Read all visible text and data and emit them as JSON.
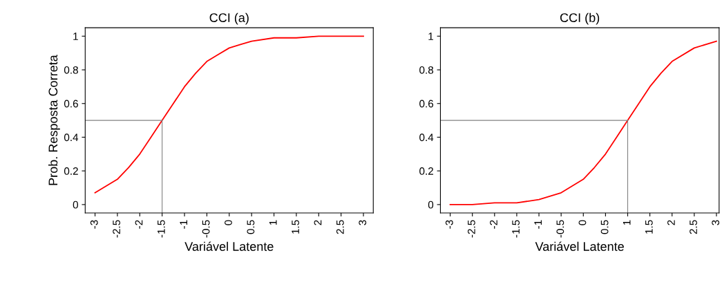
{
  "chart_data": [
    {
      "type": "line",
      "title": "CCI (a)",
      "xlabel": "Variável Latente",
      "ylabel": "Prob. Resposta Correta",
      "x": [
        -3,
        -2.75,
        -2.5,
        -2.25,
        -2,
        -1.75,
        -1.5,
        -1.25,
        -1,
        -0.75,
        -0.5,
        -0.25,
        0,
        0.25,
        0.5,
        1,
        1.5,
        2,
        2.5,
        3
      ],
      "series": [
        {
          "color": "#ff0000",
          "values": [
            0.07,
            0.11,
            0.15,
            0.22,
            0.3,
            0.4,
            0.5,
            0.6,
            0.7,
            0.78,
            0.85,
            0.89,
            0.93,
            0.95,
            0.97,
            0.99,
            0.99,
            1.0,
            1.0,
            1.0
          ]
        }
      ],
      "xlim": [
        -3.22,
        3.22
      ],
      "ylim": [
        -0.05,
        1.05
      ],
      "xticks": [
        -3,
        -2.5,
        -2,
        -1.5,
        -1,
        -0.5,
        0,
        0.5,
        1,
        1.5,
        2,
        2.5,
        3
      ],
      "yticks": [
        0,
        0.2,
        0.4,
        0.6,
        0.8,
        1
      ],
      "ref_lines": [
        {
          "axis": "x",
          "value": -1.5,
          "color": "#808080"
        },
        {
          "axis": "y",
          "value": 0.5,
          "color": "#808080"
        }
      ],
      "grid": false,
      "legend": false
    },
    {
      "type": "line",
      "title": "CCI (b)",
      "xlabel": "Variável Latente",
      "x": [
        -3,
        -2.5,
        -2,
        -1.5,
        -1,
        -0.5,
        -0.25,
        0,
        0.25,
        0.5,
        0.75,
        1,
        1.25,
        1.5,
        1.75,
        2,
        2.5,
        3
      ],
      "series": [
        {
          "color": "#ff0000",
          "values": [
            0.0,
            0.0,
            0.01,
            0.01,
            0.03,
            0.07,
            0.11,
            0.15,
            0.22,
            0.3,
            0.4,
            0.5,
            0.6,
            0.7,
            0.78,
            0.85,
            0.93,
            0.97
          ]
        }
      ],
      "xlim": [
        -3.22,
        3.06
      ],
      "ylim": [
        -0.05,
        1.05
      ],
      "xticks": [
        -3,
        -2.5,
        -2,
        -1.5,
        -1,
        -0.5,
        0,
        0.5,
        1,
        1.5,
        2,
        2.5,
        3
      ],
      "yticks": [
        0,
        0.2,
        0.4,
        0.6,
        0.8,
        1
      ],
      "ref_lines": [
        {
          "axis": "x",
          "value": 1,
          "color": "#808080"
        },
        {
          "axis": "y",
          "value": 0.5,
          "color": "#808080"
        }
      ],
      "grid": false,
      "legend": false
    }
  ]
}
